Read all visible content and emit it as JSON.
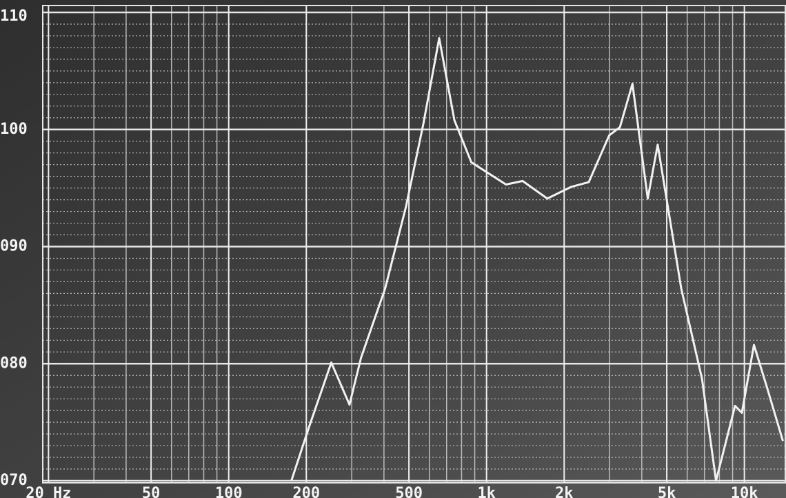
{
  "chart_data": {
    "type": "line",
    "x": [
      175,
      205,
      250,
      294,
      326,
      404,
      487,
      569,
      655,
      750,
      873,
      1190,
      1380,
      1720,
      2130,
      2490,
      2990,
      3290,
      3680,
      4220,
      4610,
      5690,
      6850,
      7760,
      9200,
      9780,
      10890,
      12300,
      14100
    ],
    "series": [
      {
        "color": "#f2f2f2",
        "values": [
          70,
          74.6,
          80.1,
          76.5,
          80.5,
          86.4,
          93.4,
          100.5,
          107.8,
          100.8,
          97.2,
          95.3,
          95.6,
          94.1,
          95.1,
          95.5,
          99.5,
          100.2,
          103.9,
          94.1,
          98.7,
          86.4,
          78.7,
          70,
          76.4,
          75.8,
          81.6,
          77.8,
          73.4
        ]
      }
    ],
    "xlim": [
      19,
      14500
    ],
    "ylim": [
      70,
      110
    ],
    "xscale": "log",
    "xticks": [
      {
        "value": 20,
        "label": "20 Hz"
      },
      50,
      100,
      200,
      500,
      {
        "value": 1000,
        "label": "1k"
      },
      {
        "value": 2000,
        "label": "2k"
      },
      {
        "value": 5000,
        "label": "5k"
      },
      {
        "value": 10000,
        "label": "10k"
      }
    ],
    "yticks": [
      {
        "value": 70,
        "label": "070"
      },
      {
        "value": 80,
        "label": "080"
      },
      {
        "value": 90,
        "label": "090"
      },
      100,
      110
    ],
    "grid": true
  }
}
